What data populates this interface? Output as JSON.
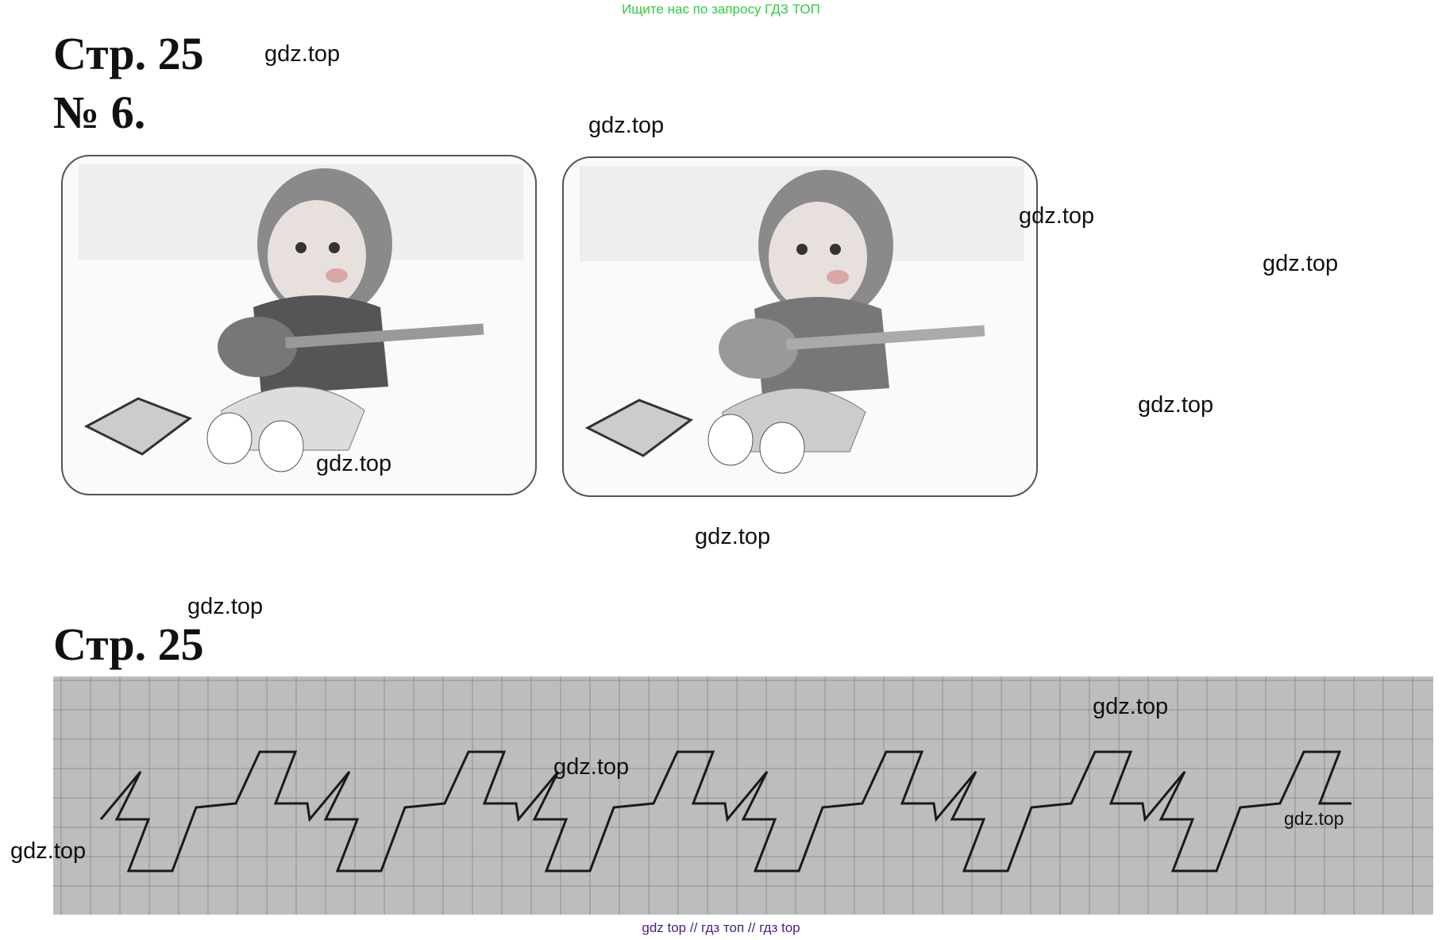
{
  "top_banner": "Ищите нас по запросу ГДЗ ТОП",
  "page_heading_1": "Стр. 25",
  "exercise_number": "№ 6.",
  "page_heading_2": "Стр. 25",
  "watermarks": [
    "gdz.top",
    "gdz.top",
    "gdz.top",
    "gdz.top",
    "gdz.top",
    "gdz.top",
    "gdz.top",
    "gdz.top",
    "gdz.top",
    "gdz.top",
    "gdz.top",
    "gdz.top"
  ],
  "footer": {
    "link1": "gdz top",
    "sep1": "//",
    "link2": "гдз топ",
    "sep2": "//",
    "link3": "гдз top"
  },
  "colors": {
    "banner": "#2ecc40",
    "footer": "#4b1d86"
  }
}
